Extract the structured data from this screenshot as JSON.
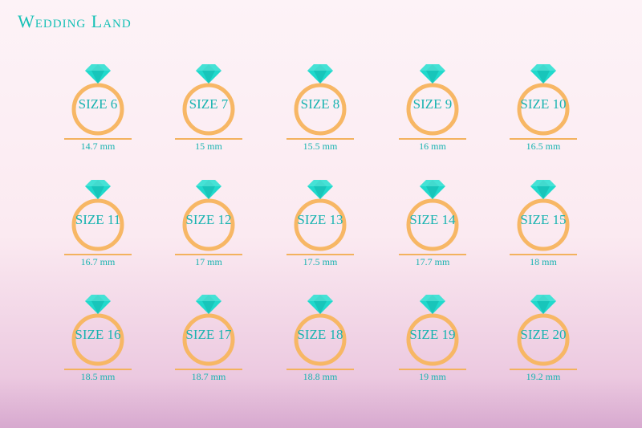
{
  "brand": "Wedding Land",
  "colors": {
    "gem": "#20d9cc",
    "gem_dark": "#12b5ab",
    "ring": "#f7b765",
    "text": "#17b3b0"
  },
  "rings": [
    {
      "size": "SIZE 6",
      "mm": "14.7 mm"
    },
    {
      "size": "SIZE 7",
      "mm": "15 mm"
    },
    {
      "size": "SIZE 8",
      "mm": "15.5 mm"
    },
    {
      "size": "SIZE 9",
      "mm": "16 mm"
    },
    {
      "size": "SIZE 10",
      "mm": "16.5 mm"
    },
    {
      "size": "SIZE 11",
      "mm": "16.7 mm"
    },
    {
      "size": "SIZE 12",
      "mm": "17 mm"
    },
    {
      "size": "SIZE 13",
      "mm": "17.5 mm"
    },
    {
      "size": "SIZE 14",
      "mm": "17.7 mm"
    },
    {
      "size": "SIZE 15",
      "mm": "18 mm"
    },
    {
      "size": "SIZE 16",
      "mm": "18.5 mm"
    },
    {
      "size": "SIZE 17",
      "mm": "18.7 mm"
    },
    {
      "size": "SIZE 18",
      "mm": "18.8 mm"
    },
    {
      "size": "SIZE 19",
      "mm": "19 mm"
    },
    {
      "size": "SIZE 20",
      "mm": "19.2 mm"
    }
  ]
}
